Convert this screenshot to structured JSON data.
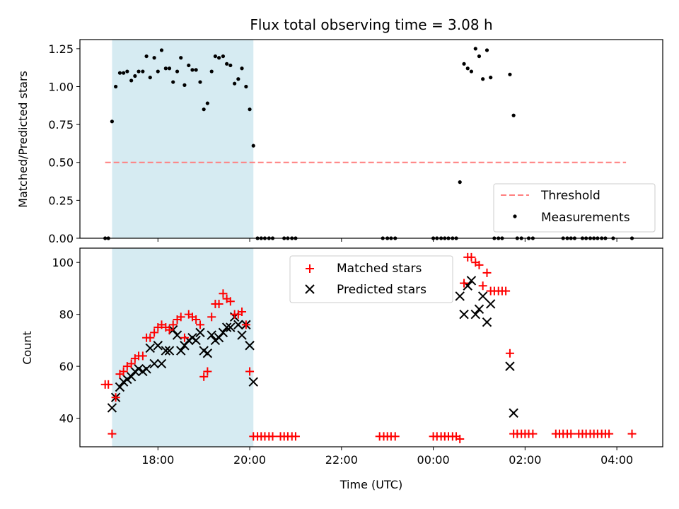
{
  "chart_data": [
    {
      "type": "scatter",
      "title": "Flux total observing time = 3.08 h",
      "xlabel": "",
      "ylabel": "Matched/Predicted stars",
      "ylim": [
        0,
        1.31
      ],
      "yticks": [
        0,
        0.25,
        0.5,
        0.75,
        1.0,
        1.25
      ],
      "ytick_labels": [
        "0.00",
        "0.25",
        "0.50",
        "0.75",
        "1.00",
        "1.25"
      ],
      "x_unit": "hours since 00:00 UTC of first night",
      "xlim": [
        16.3,
        29.0
      ],
      "xticks": [
        18,
        20,
        22,
        24,
        26,
        28
      ],
      "shaded_region": {
        "x": [
          17.0,
          20.08
        ],
        "color": "#add8e6"
      },
      "threshold": {
        "name": "Threshold",
        "y": 0.5,
        "x": [
          16.85,
          28.2
        ],
        "color": "#ff7f7f"
      },
      "legend": {
        "loc": "lower right",
        "entries": [
          "Threshold",
          "Measurements"
        ]
      },
      "series": [
        {
          "name": "Measurements",
          "color": "#000000",
          "points": [
            [
              16.85,
              0
            ],
            [
              16.92,
              0
            ],
            [
              17.0,
              0.77
            ],
            [
              17.08,
              1.0
            ],
            [
              17.17,
              1.09
            ],
            [
              17.25,
              1.09
            ],
            [
              17.33,
              1.1
            ],
            [
              17.42,
              1.04
            ],
            [
              17.5,
              1.07
            ],
            [
              17.58,
              1.1
            ],
            [
              17.67,
              1.1
            ],
            [
              17.75,
              1.2
            ],
            [
              17.83,
              1.06
            ],
            [
              17.92,
              1.19
            ],
            [
              18.0,
              1.1
            ],
            [
              18.08,
              1.24
            ],
            [
              18.17,
              1.12
            ],
            [
              18.25,
              1.12
            ],
            [
              18.33,
              1.03
            ],
            [
              18.42,
              1.1
            ],
            [
              18.5,
              1.19
            ],
            [
              18.58,
              1.01
            ],
            [
              18.67,
              1.14
            ],
            [
              18.75,
              1.11
            ],
            [
              18.83,
              1.11
            ],
            [
              18.92,
              1.03
            ],
            [
              19.0,
              0.85
            ],
            [
              19.08,
              0.89
            ],
            [
              19.17,
              1.1
            ],
            [
              19.25,
              1.2
            ],
            [
              19.33,
              1.19
            ],
            [
              19.42,
              1.2
            ],
            [
              19.5,
              1.15
            ],
            [
              19.58,
              1.14
            ],
            [
              19.67,
              1.02
            ],
            [
              19.75,
              1.05
            ],
            [
              19.83,
              1.12
            ],
            [
              19.92,
              1.0
            ],
            [
              20.0,
              0.85
            ],
            [
              20.08,
              0.61
            ],
            [
              20.17,
              0
            ],
            [
              20.25,
              0
            ],
            [
              20.33,
              0
            ],
            [
              20.42,
              0
            ],
            [
              20.5,
              0
            ],
            [
              20.75,
              0
            ],
            [
              20.83,
              0
            ],
            [
              20.92,
              0
            ],
            [
              21.0,
              0
            ],
            [
              22.9,
              0
            ],
            [
              23.0,
              0
            ],
            [
              23.08,
              0
            ],
            [
              23.17,
              0
            ],
            [
              24.0,
              0
            ],
            [
              24.08,
              0
            ],
            [
              24.17,
              0
            ],
            [
              24.25,
              0
            ],
            [
              24.33,
              0
            ],
            [
              24.42,
              0
            ],
            [
              24.5,
              0
            ],
            [
              24.58,
              0.37
            ],
            [
              24.67,
              1.15
            ],
            [
              24.75,
              1.12
            ],
            [
              24.83,
              1.1
            ],
            [
              24.92,
              1.25
            ],
            [
              25.0,
              1.2
            ],
            [
              25.08,
              1.05
            ],
            [
              25.17,
              1.24
            ],
            [
              25.25,
              1.06
            ],
            [
              25.33,
              0
            ],
            [
              25.42,
              0
            ],
            [
              25.5,
              0
            ],
            [
              25.67,
              1.08
            ],
            [
              25.75,
              0.81
            ],
            [
              25.83,
              0
            ],
            [
              25.92,
              0
            ],
            [
              26.08,
              0
            ],
            [
              26.17,
              0
            ],
            [
              26.83,
              0
            ],
            [
              26.92,
              0
            ],
            [
              27.0,
              0
            ],
            [
              27.08,
              0
            ],
            [
              27.25,
              0
            ],
            [
              27.33,
              0
            ],
            [
              27.42,
              0
            ],
            [
              27.5,
              0
            ],
            [
              27.58,
              0
            ],
            [
              27.67,
              0
            ],
            [
              27.75,
              0
            ],
            [
              27.92,
              0
            ],
            [
              28.33,
              0
            ]
          ]
        }
      ]
    },
    {
      "type": "scatter",
      "title": "",
      "xlabel": "Time (UTC)",
      "ylabel": "Count",
      "ylim": [
        29,
        105.5
      ],
      "yticks": [
        40,
        60,
        80,
        100
      ],
      "ytick_labels": [
        "40",
        "60",
        "80",
        "100"
      ],
      "x_unit": "hours since 00:00 UTC of first night",
      "xlim": [
        16.3,
        29.0
      ],
      "xticks": [
        18,
        20,
        22,
        24,
        26,
        28
      ],
      "xtick_labels": [
        "18:00",
        "20:00",
        "22:00",
        "00:00",
        "02:00",
        "04:00"
      ],
      "shaded_region": {
        "x": [
          17.0,
          20.08
        ],
        "color": "#add8e6"
      },
      "legend": {
        "loc": "upper center",
        "entries": [
          "Matched stars",
          "Predicted stars"
        ]
      },
      "series": [
        {
          "name": "Matched stars",
          "marker": "plus",
          "color": "#ff0000",
          "points": [
            [
              16.85,
              53
            ],
            [
              16.92,
              53
            ],
            [
              17.0,
              34
            ],
            [
              17.08,
              48
            ],
            [
              17.17,
              57
            ],
            [
              17.25,
              58
            ],
            [
              17.33,
              60
            ],
            [
              17.42,
              61
            ],
            [
              17.5,
              63
            ],
            [
              17.58,
              64
            ],
            [
              17.67,
              64
            ],
            [
              17.75,
              71
            ],
            [
              17.83,
              71
            ],
            [
              17.92,
              73
            ],
            [
              18.0,
              75
            ],
            [
              18.08,
              76
            ],
            [
              18.17,
              75
            ],
            [
              18.25,
              74
            ],
            [
              18.33,
              76
            ],
            [
              18.42,
              78
            ],
            [
              18.5,
              79
            ],
            [
              18.58,
              71
            ],
            [
              18.67,
              80
            ],
            [
              18.75,
              79
            ],
            [
              18.83,
              78
            ],
            [
              18.92,
              76
            ],
            [
              19.0,
              56
            ],
            [
              19.08,
              58
            ],
            [
              19.17,
              79
            ],
            [
              19.25,
              84
            ],
            [
              19.33,
              84
            ],
            [
              19.42,
              88
            ],
            [
              19.5,
              86
            ],
            [
              19.58,
              85
            ],
            [
              19.67,
              80
            ],
            [
              19.75,
              80
            ],
            [
              19.83,
              81
            ],
            [
              19.92,
              76
            ],
            [
              20.0,
              58
            ],
            [
              20.08,
              33
            ],
            [
              20.17,
              33
            ],
            [
              20.25,
              33
            ],
            [
              20.33,
              33
            ],
            [
              20.42,
              33
            ],
            [
              20.5,
              33
            ],
            [
              20.67,
              33
            ],
            [
              20.75,
              33
            ],
            [
              20.83,
              33
            ],
            [
              20.92,
              33
            ],
            [
              21.0,
              33
            ],
            [
              22.83,
              33
            ],
            [
              22.92,
              33
            ],
            [
              23.0,
              33
            ],
            [
              23.08,
              33
            ],
            [
              23.17,
              33
            ],
            [
              24.0,
              33
            ],
            [
              24.08,
              33
            ],
            [
              24.17,
              33
            ],
            [
              24.25,
              33
            ],
            [
              24.33,
              33
            ],
            [
              24.42,
              33
            ],
            [
              24.5,
              33
            ],
            [
              24.58,
              32
            ],
            [
              24.67,
              92
            ],
            [
              24.75,
              102
            ],
            [
              24.83,
              102
            ],
            [
              24.92,
              100
            ],
            [
              25.0,
              99
            ],
            [
              25.08,
              91
            ],
            [
              25.17,
              96
            ],
            [
              25.25,
              89
            ],
            [
              25.33,
              89
            ],
            [
              25.42,
              89
            ],
            [
              25.5,
              89
            ],
            [
              25.58,
              89
            ],
            [
              25.67,
              65
            ],
            [
              25.75,
              34
            ],
            [
              25.83,
              34
            ],
            [
              25.92,
              34
            ],
            [
              26.0,
              34
            ],
            [
              26.08,
              34
            ],
            [
              26.17,
              34
            ],
            [
              26.67,
              34
            ],
            [
              26.75,
              34
            ],
            [
              26.83,
              34
            ],
            [
              26.92,
              34
            ],
            [
              27.0,
              34
            ],
            [
              27.17,
              34
            ],
            [
              27.25,
              34
            ],
            [
              27.33,
              34
            ],
            [
              27.42,
              34
            ],
            [
              27.5,
              34
            ],
            [
              27.58,
              34
            ],
            [
              27.67,
              34
            ],
            [
              27.75,
              34
            ],
            [
              27.83,
              34
            ],
            [
              28.33,
              34
            ]
          ]
        },
        {
          "name": "Predicted stars",
          "marker": "x",
          "color": "#000000",
          "points": [
            [
              17.0,
              44
            ],
            [
              17.08,
              48
            ],
            [
              17.17,
              52
            ],
            [
              17.25,
              54
            ],
            [
              17.33,
              55
            ],
            [
              17.42,
              56
            ],
            [
              17.5,
              58
            ],
            [
              17.58,
              59
            ],
            [
              17.67,
              58
            ],
            [
              17.75,
              59
            ],
            [
              17.83,
              67
            ],
            [
              17.92,
              61
            ],
            [
              18.0,
              68
            ],
            [
              18.08,
              61
            ],
            [
              18.17,
              66
            ],
            [
              18.25,
              66
            ],
            [
              18.33,
              74
            ],
            [
              18.42,
              72
            ],
            [
              18.5,
              66
            ],
            [
              18.58,
              68
            ],
            [
              18.67,
              70
            ],
            [
              18.75,
              71
            ],
            [
              18.83,
              70
            ],
            [
              18.92,
              73
            ],
            [
              19.0,
              66
            ],
            [
              19.08,
              65
            ],
            [
              19.17,
              72
            ],
            [
              19.25,
              70
            ],
            [
              19.33,
              71
            ],
            [
              19.42,
              73
            ],
            [
              19.5,
              75
            ],
            [
              19.58,
              75
            ],
            [
              19.67,
              79
            ],
            [
              19.75,
              76
            ],
            [
              19.83,
              72
            ],
            [
              19.92,
              76
            ],
            [
              20.0,
              68
            ],
            [
              20.08,
              54
            ],
            [
              24.58,
              87
            ],
            [
              24.67,
              80
            ],
            [
              24.75,
              91
            ],
            [
              24.83,
              93
            ],
            [
              24.92,
              80
            ],
            [
              25.0,
              82
            ],
            [
              25.08,
              87
            ],
            [
              25.17,
              77
            ],
            [
              25.25,
              84
            ],
            [
              25.67,
              60
            ],
            [
              25.75,
              42
            ]
          ]
        }
      ]
    }
  ]
}
